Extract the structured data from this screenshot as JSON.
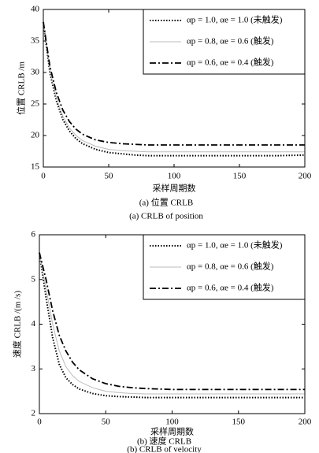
{
  "chart_data": [
    {
      "type": "line",
      "x_label": "采样周期数",
      "y_label": "位置 CRLB /m",
      "captions": [
        "(a) 位置 CRLB",
        "(a) CRLB of position"
      ],
      "x": [
        0,
        5,
        10,
        15,
        20,
        25,
        30,
        40,
        50,
        60,
        70,
        80,
        100,
        120,
        140,
        160,
        180,
        200
      ],
      "series": [
        {
          "name": "αp = 1.0, αe = 1.0 (未触发)",
          "color": "#000000",
          "style": "dotted",
          "values": [
            38,
            30,
            25.5,
            22.5,
            20.7,
            19.5,
            18.7,
            17.8,
            17.3,
            17.1,
            16.9,
            16.8,
            16.8,
            16.8,
            16.8,
            16.8,
            16.8,
            16.9
          ]
        },
        {
          "name": "αp = 0.8, αe = 0.6 (触发)",
          "color": "#bbbbbb",
          "style": "solid",
          "values": [
            38,
            30.5,
            26,
            23,
            21.2,
            20,
            19.2,
            18.3,
            17.8,
            17.6,
            17.5,
            17.4,
            17.4,
            17.4,
            17.4,
            17.4,
            17.4,
            17.4
          ]
        },
        {
          "name": "αp = 0.6, αe = 0.4 (触发)",
          "color": "#000000",
          "style": "dashdot",
          "values": [
            38,
            31,
            26.8,
            24,
            22.2,
            21,
            20.2,
            19.3,
            18.9,
            18.7,
            18.6,
            18.5,
            18.5,
            18.5,
            18.5,
            18.5,
            18.5,
            18.5
          ]
        }
      ],
      "xlim": [
        0,
        200
      ],
      "xticks": [
        0,
        50,
        100,
        150,
        200
      ],
      "ylim": [
        15,
        40
      ],
      "yticks": [
        15,
        20,
        25,
        30,
        35,
        40
      ],
      "grid": false,
      "legend": "upper right"
    },
    {
      "type": "line",
      "x_label": "采样周期数",
      "y_label": "速度 CRLB /(m /s)",
      "captions": [
        "(b) 速度 CRLB",
        "(b) CRLB of velocity"
      ],
      "x": [
        0,
        5,
        10,
        15,
        20,
        25,
        30,
        40,
        50,
        60,
        70,
        80,
        100,
        120,
        140,
        160,
        180,
        200
      ],
      "series": [
        {
          "name": "αp = 1.0, αe = 1.0 (未触发)",
          "color": "#000000",
          "style": "dotted",
          "values": [
            5.6,
            4.6,
            3.7,
            3.1,
            2.8,
            2.65,
            2.55,
            2.45,
            2.4,
            2.38,
            2.37,
            2.36,
            2.36,
            2.36,
            2.36,
            2.36,
            2.36,
            2.36
          ]
        },
        {
          "name": "αp = 0.8, αe = 0.6 (触发)",
          "color": "#bbbbbb",
          "style": "solid",
          "values": [
            5.6,
            4.8,
            4.0,
            3.4,
            3.05,
            2.85,
            2.72,
            2.58,
            2.5,
            2.47,
            2.45,
            2.44,
            2.44,
            2.44,
            2.44,
            2.44,
            2.44,
            2.44
          ]
        },
        {
          "name": "αp = 0.6, αe = 0.4 (触发)",
          "color": "#000000",
          "style": "dashdot",
          "values": [
            5.6,
            5.0,
            4.3,
            3.75,
            3.4,
            3.15,
            2.98,
            2.78,
            2.67,
            2.61,
            2.58,
            2.56,
            2.54,
            2.54,
            2.54,
            2.54,
            2.54,
            2.54
          ]
        }
      ],
      "xlim": [
        0,
        200
      ],
      "xticks": [
        0,
        50,
        100,
        150,
        200
      ],
      "ylim": [
        2,
        6
      ],
      "yticks": [
        2,
        3,
        4,
        5,
        6
      ],
      "grid": false,
      "legend": "upper right"
    }
  ]
}
